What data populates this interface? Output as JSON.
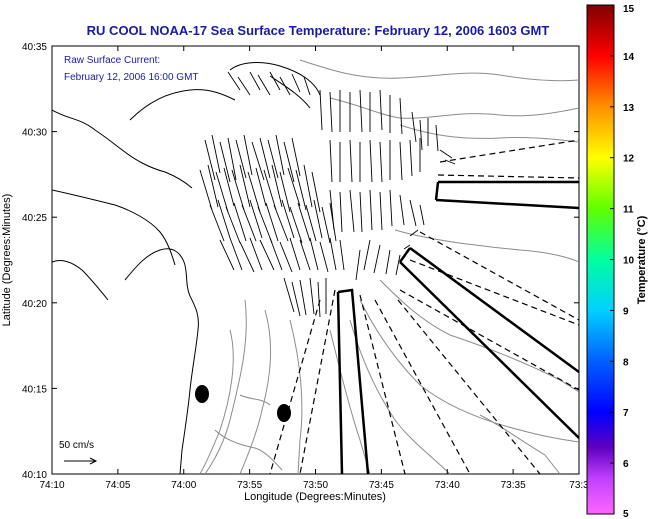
{
  "title": "RU COOL  NOAA-17  Sea Surface Temperature:  February 12, 2006 1603 GMT",
  "subtitle": {
    "line1": "Raw Surface Current:",
    "line2": "February 12, 2006 16:00 GMT"
  },
  "xlabel": "Longitude (Degrees:Minutes)",
  "ylabel": "Latitude (Degrees:Minutes)",
  "x_ticks": [
    "74:10",
    "74:05",
    "74:00",
    "73:55",
    "73:50",
    "73:45",
    "73:40",
    "73:35",
    "73:3"
  ],
  "y_ticks": [
    "40:35",
    "40:30",
    "40:25",
    "40:20",
    "40:15",
    "40:10"
  ],
  "scale_label": "50 cm/s",
  "colorbar": {
    "label": "Temperature (°C)",
    "ticks": [
      "5",
      "6",
      "7",
      "8",
      "9",
      "10",
      "11",
      "12",
      "13",
      "14",
      "15"
    ],
    "range": [
      5,
      15
    ],
    "colors": [
      "#ff66ff",
      "#8000a0",
      "#0000ff",
      "#0088ff",
      "#00ffff",
      "#00ff80",
      "#60ff00",
      "#ffff00",
      "#ff8000",
      "#ff0000",
      "#800000"
    ]
  },
  "map_colors": {
    "contour": "#8c8c8c",
    "coast": "#000000",
    "vectors": "#000000"
  }
}
